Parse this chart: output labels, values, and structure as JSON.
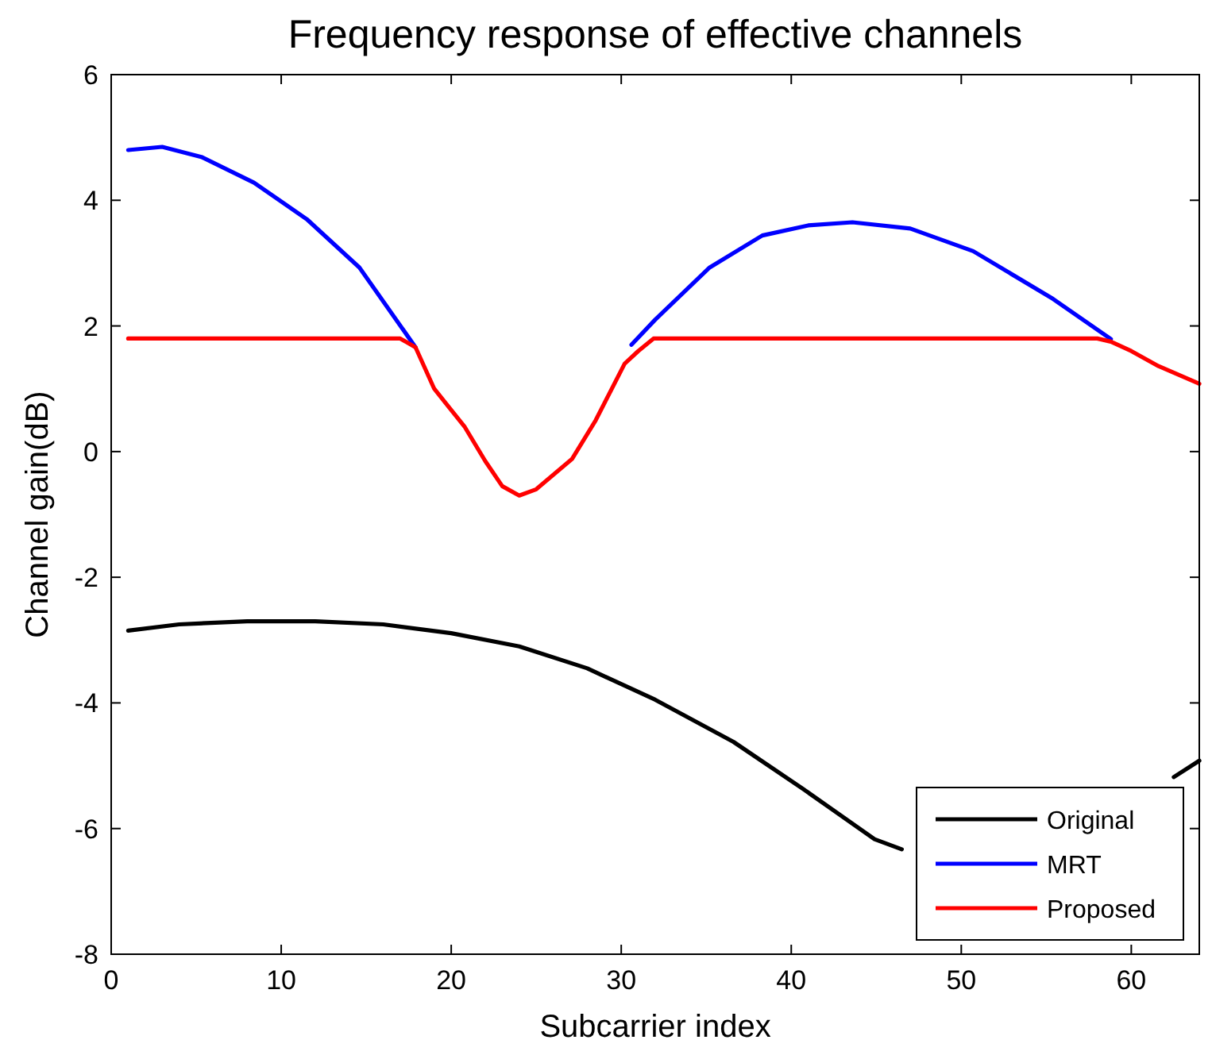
{
  "chart_data": {
    "type": "line",
    "title": "Frequency response of effective channels",
    "xlabel": "Subcarrier index",
    "ylabel": "Channel gain(dB)",
    "xlim": [
      0,
      64
    ],
    "ylim": [
      -8,
      6
    ],
    "xticks": [
      0,
      10,
      20,
      30,
      40,
      50,
      60
    ],
    "yticks": [
      -8,
      -6,
      -4,
      -2,
      0,
      2,
      4,
      6
    ],
    "grid": false,
    "legend": "bottom right",
    "marker": "none",
    "line_style": "solid",
    "series": [
      {
        "name": "Original",
        "color": "#000000",
        "x": [
          1,
          4,
          8,
          12,
          16,
          20,
          24,
          28,
          32,
          36.6,
          40.7,
          44.9,
          46.5,
          52,
          62.5,
          64
        ],
        "values": [
          -2.85,
          -2.75,
          -2.7,
          -2.7,
          -2.75,
          -2.89,
          -3.1,
          -3.45,
          -3.95,
          -4.62,
          -5.37,
          -6.17,
          -6.33,
          null,
          -5.18,
          -4.92
        ]
      },
      {
        "name": "MRT",
        "color": "#0000ff",
        "x": [
          1,
          3,
          5.3,
          8.4,
          11.5,
          14.6,
          17.9,
          24,
          30.6,
          32,
          35.2,
          38.3,
          41,
          43.6,
          47,
          50.7,
          55.4,
          58.8
        ],
        "values": [
          4.8,
          4.85,
          4.69,
          4.28,
          3.7,
          2.93,
          1.66,
          null,
          1.7,
          2.1,
          2.93,
          3.44,
          3.6,
          3.65,
          3.55,
          3.19,
          2.43,
          1.79
        ]
      },
      {
        "name": "Proposed",
        "color": "#ff0000",
        "x": [
          1,
          17,
          17.9,
          19,
          20.8,
          22,
          23,
          24,
          25,
          27.1,
          28.5,
          30.2,
          31,
          31.9,
          58,
          58.8,
          60,
          61.6,
          64
        ],
        "values": [
          1.8,
          1.8,
          1.66,
          1.0,
          0.39,
          -0.15,
          -0.55,
          -0.7,
          -0.6,
          -0.12,
          0.5,
          1.4,
          1.6,
          1.8,
          1.8,
          1.75,
          1.6,
          1.36,
          1.08
        ]
      }
    ]
  }
}
